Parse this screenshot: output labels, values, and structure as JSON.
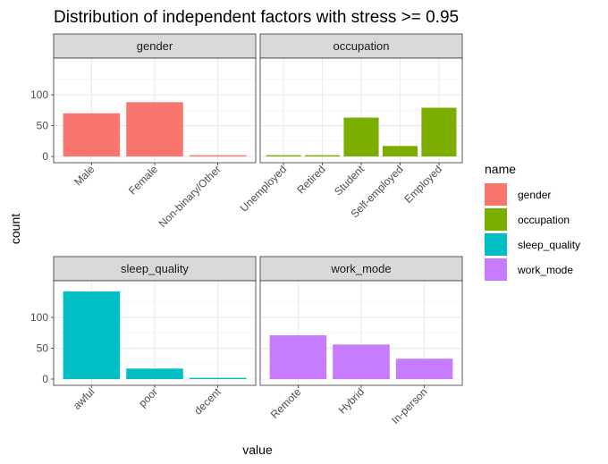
{
  "chart_data": {
    "type": "bar",
    "title": "Distribution of independent factors with stress >= 0.95",
    "xlabel": "value",
    "ylabel": "count",
    "ylim": [
      0,
      145
    ],
    "y_ticks": [
      0,
      50,
      100
    ],
    "grid": true,
    "facet_scales": "free_x",
    "legend": {
      "title": "name",
      "placement": "right",
      "entries": [
        {
          "label": "gender",
          "color": "#F8766D"
        },
        {
          "label": "occupation",
          "color": "#7CAE00"
        },
        {
          "label": "sleep_quality",
          "color": "#00BFC4"
        },
        {
          "label": "work_mode",
          "color": "#C77CFF"
        }
      ]
    },
    "panels": [
      {
        "name": "gender",
        "color": "#F8766D",
        "categories": [
          "Male",
          "Female",
          "Non-binary/Other"
        ],
        "values": [
          70,
          88,
          2
        ]
      },
      {
        "name": "occupation",
        "color": "#7CAE00",
        "categories": [
          "Unemployed",
          "Retired",
          "Student",
          "Self-employed",
          "Employed"
        ],
        "values": [
          2,
          2,
          63,
          17,
          79
        ]
      },
      {
        "name": "sleep_quality",
        "color": "#00BFC4",
        "categories": [
          "awful",
          "poor",
          "decent"
        ],
        "values": [
          142,
          17,
          2
        ]
      },
      {
        "name": "work_mode",
        "color": "#C77CFF",
        "categories": [
          "Remote",
          "Hybrid",
          "In-person"
        ],
        "values": [
          71,
          56,
          33
        ]
      }
    ]
  }
}
